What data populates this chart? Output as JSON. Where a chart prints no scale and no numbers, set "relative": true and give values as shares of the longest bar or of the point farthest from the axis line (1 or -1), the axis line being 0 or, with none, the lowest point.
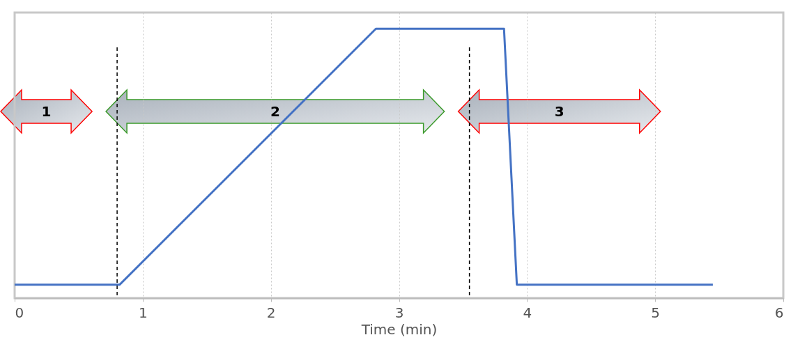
{
  "chart_data": {
    "type": "line",
    "relative": true,
    "xlabel": "Time (min)",
    "xlim": [
      0,
      6
    ],
    "xticks": [
      0,
      1,
      2,
      3,
      4,
      5,
      6
    ],
    "grid": "x",
    "series": [
      {
        "color": "#4472c4",
        "x": [
          0,
          0.82,
          2.82,
          3.82,
          3.92,
          5.45
        ],
        "values": [
          0.05,
          0.05,
          1,
          1,
          0.05,
          0.05
        ]
      }
    ],
    "ref_lines": [
      {
        "axis": "x",
        "value": 0.8,
        "color": "#000000",
        "line_style": "dashed"
      },
      {
        "axis": "x",
        "value": 3.55,
        "color": "#000000",
        "line_style": "dashed"
      }
    ],
    "annotations": [
      "1",
      "2",
      "3"
    ]
  }
}
